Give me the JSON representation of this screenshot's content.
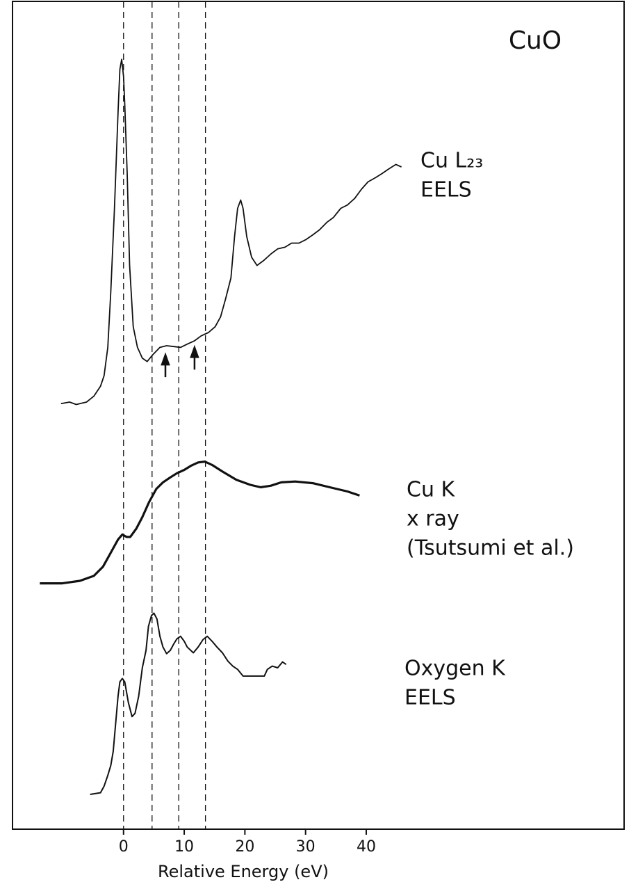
{
  "chart_data": {
    "type": "line",
    "title": "CuO",
    "x_label": "Relative Energy (eV)",
    "xlim": [
      -18.3,
      82.5
    ],
    "xticks": [
      0,
      10,
      20,
      30,
      40
    ],
    "ylim": [
      0,
      100
    ],
    "vlines": [
      0,
      4.7,
      9.1,
      13.5
    ],
    "arrows": [
      {
        "x": 6.9,
        "y": 57.3
      },
      {
        "x": 11.7,
        "y": 58.2
      }
    ],
    "series": [
      {
        "name": [
          "Cu L₂₃",
          "EELS"
        ],
        "color": "#111111",
        "x": [
          -10.3,
          -8.9,
          -7.8,
          -6.1,
          -4.9,
          -3.8,
          -3.2,
          -2.6,
          -2.1,
          -1.5,
          -0.9,
          -0.6,
          -0.3,
          0,
          0.2,
          0.6,
          1.0,
          1.6,
          2.3,
          3.1,
          3.9,
          4.8,
          6.0,
          7.1,
          8.3,
          9.4,
          10.5,
          11.7,
          12.8,
          14.0,
          15.1,
          16.0,
          16.8,
          17.7,
          18.3,
          18.8,
          19.3,
          19.7,
          20.3,
          21.1,
          22.0,
          23.1,
          24.3,
          25.4,
          26.6,
          27.7,
          28.9,
          30.0,
          31.2,
          32.3,
          33.5,
          34.6,
          35.8,
          36.9,
          38.1,
          39.2,
          40.3,
          41.5,
          42.6,
          43.8,
          44.9,
          45.8
        ],
        "values": [
          51.4,
          51.6,
          51.3,
          51.6,
          52.3,
          53.5,
          54.8,
          58.2,
          64.9,
          75.0,
          86.7,
          91.8,
          93.0,
          90.9,
          87.6,
          79.2,
          68.1,
          60.7,
          58.2,
          56.9,
          56.5,
          57.3,
          58.2,
          58.4,
          58.3,
          58.2,
          58.6,
          59.0,
          59.6,
          60.0,
          60.7,
          61.9,
          64.0,
          66.6,
          71.6,
          75.0,
          76.0,
          75.0,
          71.6,
          69.1,
          68.1,
          68.7,
          69.5,
          70.1,
          70.3,
          70.8,
          70.8,
          71.2,
          71.8,
          72.4,
          73.3,
          73.9,
          75.0,
          75.4,
          76.2,
          77.3,
          78.2,
          78.7,
          79.2,
          79.8,
          80.3,
          80.0
        ]
      },
      {
        "name": [
          "Cu K",
          "x ray",
          "(Tsutsumi et al.)"
        ],
        "color": "#111111",
        "x": [
          -13.8,
          -10.1,
          -7.2,
          -4.9,
          -3.4,
          -2.1,
          -0.9,
          -0.2,
          0.5,
          1.1,
          2.1,
          3.1,
          4.2,
          5.4,
          6.5,
          7.7,
          8.8,
          10.0,
          11.1,
          12.3,
          13.4,
          14.6,
          16.3,
          18.6,
          20.9,
          22.6,
          24.3,
          26.0,
          28.3,
          31.2,
          34.0,
          36.9,
          38.9
        ],
        "values": [
          29.7,
          29.7,
          30.0,
          30.6,
          31.7,
          33.4,
          35.0,
          35.6,
          35.3,
          35.3,
          36.3,
          37.7,
          39.5,
          41.1,
          41.9,
          42.5,
          43.0,
          43.4,
          43.9,
          44.3,
          44.4,
          44.0,
          43.2,
          42.2,
          41.6,
          41.3,
          41.5,
          41.9,
          42.0,
          41.8,
          41.3,
          40.8,
          40.3
        ]
      },
      {
        "name": [
          "Oxygen K",
          "EELS"
        ],
        "color": "#111111",
        "x": [
          -5.5,
          -3.8,
          -3.2,
          -2.6,
          -2.1,
          -1.7,
          -1.4,
          -0.9,
          -0.6,
          -0.2,
          0.2,
          0.8,
          1.4,
          1.9,
          2.5,
          3.1,
          3.7,
          4.1,
          4.6,
          5.0,
          5.5,
          6.0,
          6.5,
          7.1,
          7.7,
          8.3,
          8.8,
          9.4,
          10.0,
          10.5,
          11.5,
          12.3,
          13.1,
          13.8,
          14.6,
          15.4,
          16.3,
          17.2,
          18.0,
          18.8,
          19.7,
          20.9,
          22.0,
          23.2,
          23.7,
          24.5,
          25.4,
          26.2,
          26.8
        ],
        "values": [
          4.2,
          4.4,
          5.2,
          6.5,
          7.7,
          9.4,
          11.9,
          16.1,
          17.8,
          18.2,
          17.8,
          15.3,
          13.6,
          14.0,
          16.1,
          19.5,
          21.6,
          24.5,
          25.8,
          26.1,
          25.4,
          23.3,
          22.0,
          21.2,
          21.6,
          22.4,
          23.0,
          23.3,
          22.7,
          22.0,
          21.3,
          22.0,
          22.9,
          23.3,
          22.7,
          22.0,
          21.3,
          20.3,
          19.7,
          19.3,
          18.5,
          18.5,
          18.5,
          18.5,
          19.3,
          19.7,
          19.5,
          20.2,
          19.9
        ]
      }
    ]
  }
}
